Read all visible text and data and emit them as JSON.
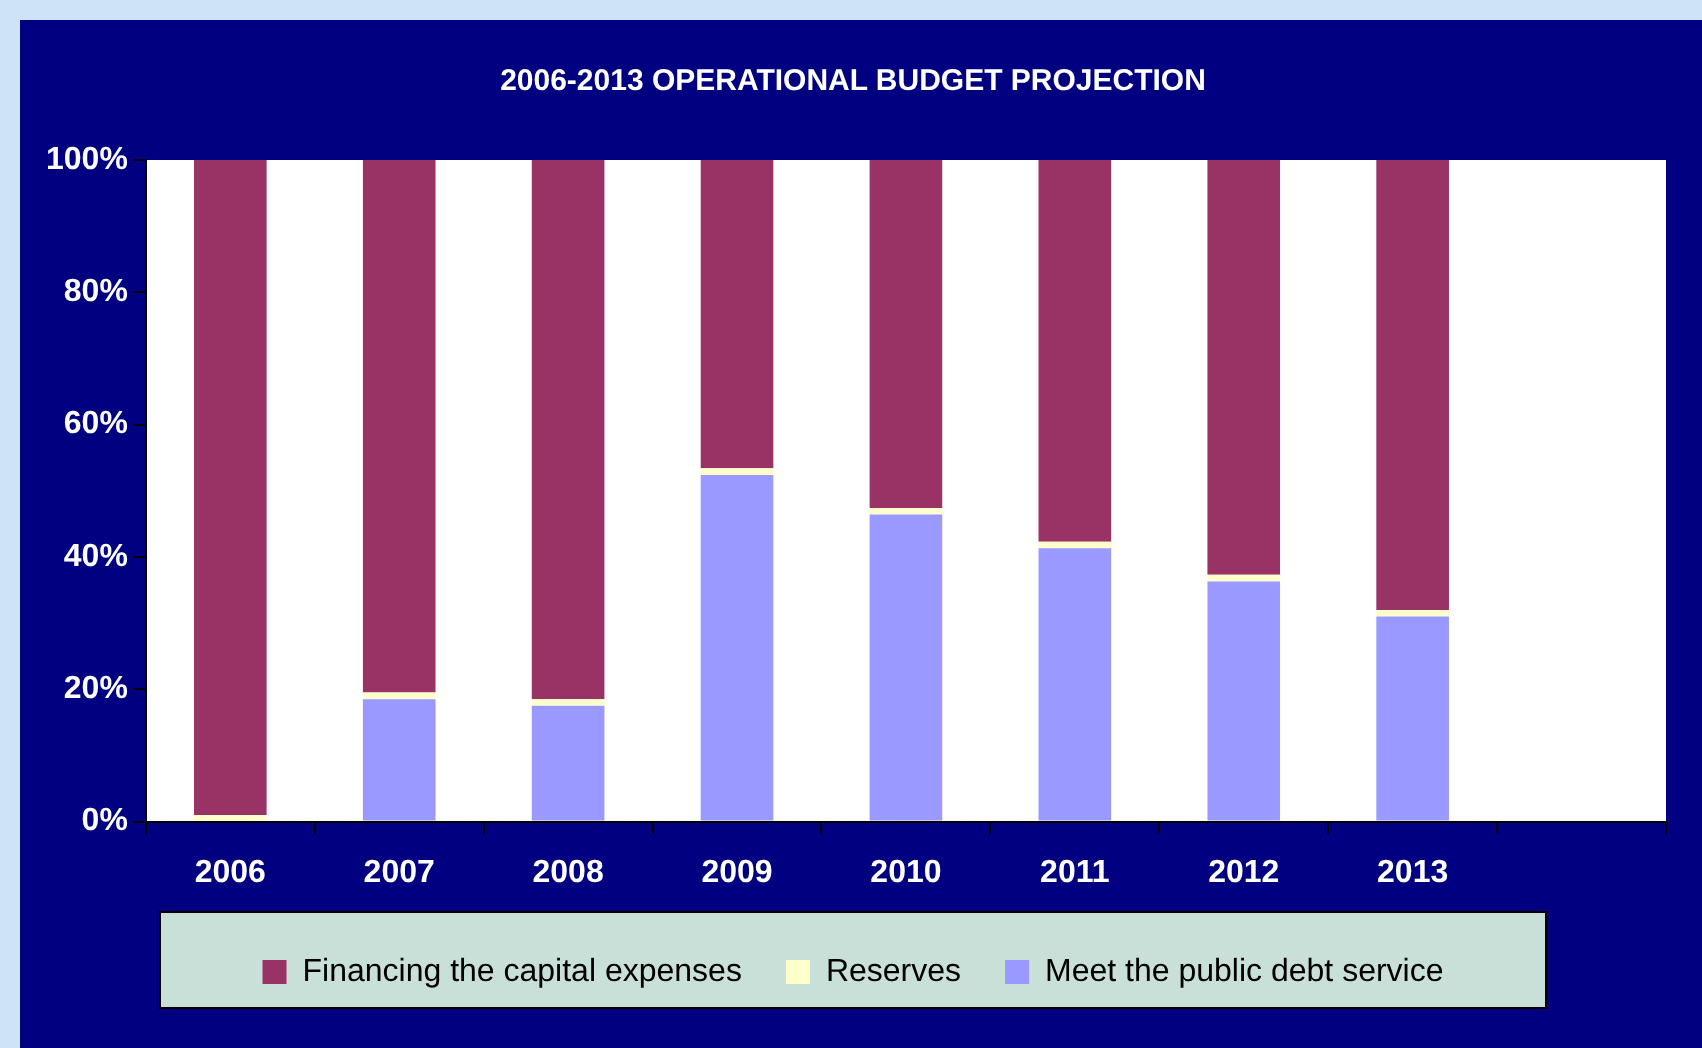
{
  "chart_data": {
    "type": "bar",
    "title": "2006-2013 OPERATIONAL BUDGET PROJECTION",
    "categories": [
      "2006",
      "2007",
      "2008",
      "2009",
      "2010",
      "2011",
      "2012",
      "2013",
      null
    ],
    "stacked": true,
    "series": [
      {
        "name": "Meet the public debt service",
        "color": "#9999ff",
        "values": [
          0,
          18.5,
          17.5,
          52.4,
          46.4,
          41.3,
          36.3,
          31.0,
          null
        ]
      },
      {
        "name": "Reserves",
        "color": "#ffffcc",
        "values": [
          1,
          1,
          1,
          1,
          1,
          1,
          1,
          1,
          null
        ]
      },
      {
        "name": "Financing the capital expenses",
        "color": "#993366",
        "values": [
          99,
          80.5,
          81.5,
          46.6,
          52.6,
          57.7,
          62.7,
          68.0,
          null
        ]
      }
    ],
    "ylim": [
      0,
      100
    ],
    "yticks": [
      {
        "value": 0,
        "label": "0%"
      },
      {
        "value": 20,
        "label": "20%"
      },
      {
        "value": 40,
        "label": "40%"
      },
      {
        "value": 60,
        "label": "60%"
      },
      {
        "value": 80,
        "label": "80%"
      },
      {
        "value": 100,
        "label": "100%"
      }
    ],
    "grid": false,
    "legend": "bottom"
  }
}
